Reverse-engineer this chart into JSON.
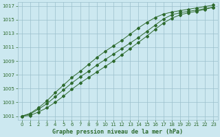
{
  "title": "Graphe pression niveau de la mer (hPa)",
  "bg_color": "#cce8f0",
  "grid_color": "#9bbfcc",
  "line_color": "#2d6a2d",
  "marker_color": "#2d6a2d",
  "xlim": [
    -0.5,
    23.5
  ],
  "ylim": [
    1000.5,
    1017.5
  ],
  "xticks": [
    0,
    1,
    2,
    3,
    4,
    5,
    6,
    7,
    8,
    9,
    10,
    11,
    12,
    13,
    14,
    15,
    16,
    17,
    18,
    19,
    20,
    21,
    22,
    23
  ],
  "yticks": [
    1001,
    1003,
    1005,
    1007,
    1009,
    1011,
    1013,
    1015,
    1017
  ],
  "hours": [
    0,
    1,
    2,
    3,
    4,
    5,
    6,
    7,
    8,
    9,
    10,
    11,
    12,
    13,
    14,
    15,
    16,
    17,
    18,
    19,
    20,
    21,
    22,
    23
  ],
  "line1": [
    1001.0,
    1001.3,
    1002.0,
    1002.8,
    1003.8,
    1004.8,
    1005.8,
    1006.7,
    1007.5,
    1008.4,
    1009.2,
    1010.0,
    1010.8,
    1011.6,
    1012.4,
    1013.3,
    1014.2,
    1015.1,
    1015.7,
    1016.0,
    1016.2,
    1016.4,
    1016.6,
    1016.8
  ],
  "line2": [
    1001.0,
    1001.4,
    1002.2,
    1003.2,
    1004.4,
    1005.5,
    1006.6,
    1007.5,
    1008.5,
    1009.5,
    1010.4,
    1011.2,
    1012.0,
    1012.9,
    1013.8,
    1014.6,
    1015.3,
    1015.8,
    1016.1,
    1016.3,
    1016.5,
    1016.7,
    1016.9,
    1017.1
  ],
  "line3": [
    1001.0,
    1001.1,
    1001.6,
    1002.2,
    1003.0,
    1003.9,
    1004.9,
    1005.8,
    1006.6,
    1007.4,
    1008.2,
    1009.0,
    1009.9,
    1010.8,
    1011.7,
    1012.6,
    1013.6,
    1014.5,
    1015.2,
    1015.7,
    1016.0,
    1016.2,
    1016.5,
    1016.8
  ]
}
